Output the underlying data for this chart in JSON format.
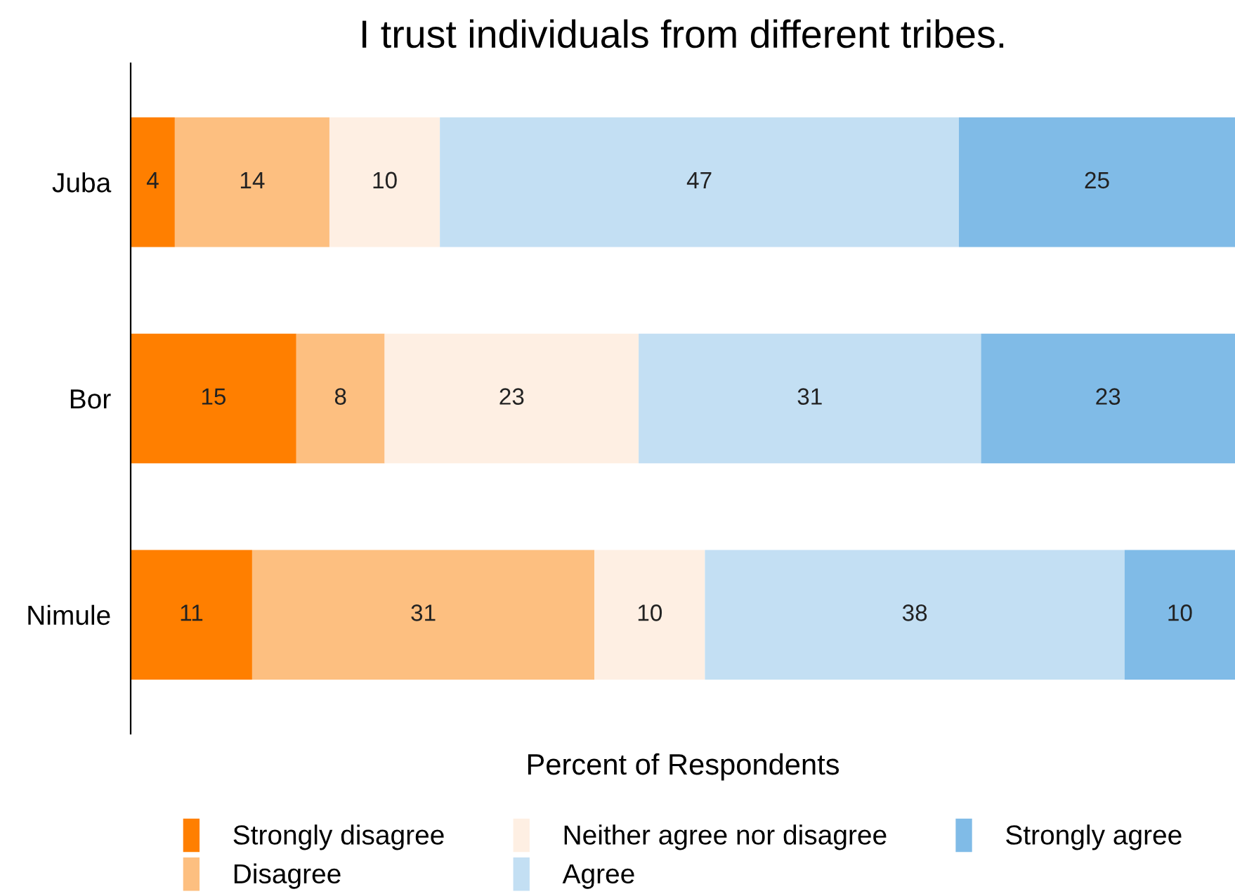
{
  "chart_data": {
    "type": "bar",
    "title": "I trust individuals from different tribes.",
    "xlabel": "Percent of Respondents",
    "orientation": "horizontal",
    "stacked": true,
    "data_labels": true,
    "legend": "bottom",
    "grid": false,
    "tick_labels": "y",
    "categories": [
      "Juba",
      "Bor",
      "Nimule"
    ],
    "series": [
      {
        "name": "Strongly disagree",
        "color": "#ff7f00",
        "values": [
          4,
          15,
          11
        ]
      },
      {
        "name": "Disagree",
        "color": "#fdbf80",
        "values": [
          14,
          8,
          31
        ]
      },
      {
        "name": "Neither agree nor disagree",
        "color": "#feefe3",
        "values": [
          10,
          23,
          10
        ]
      },
      {
        "name": "Agree",
        "color": "#c3dff3",
        "values": [
          47,
          31,
          38
        ]
      },
      {
        "name": "Strongly agree",
        "color": "#80bbe7",
        "values": [
          25,
          23,
          10
        ]
      }
    ]
  }
}
